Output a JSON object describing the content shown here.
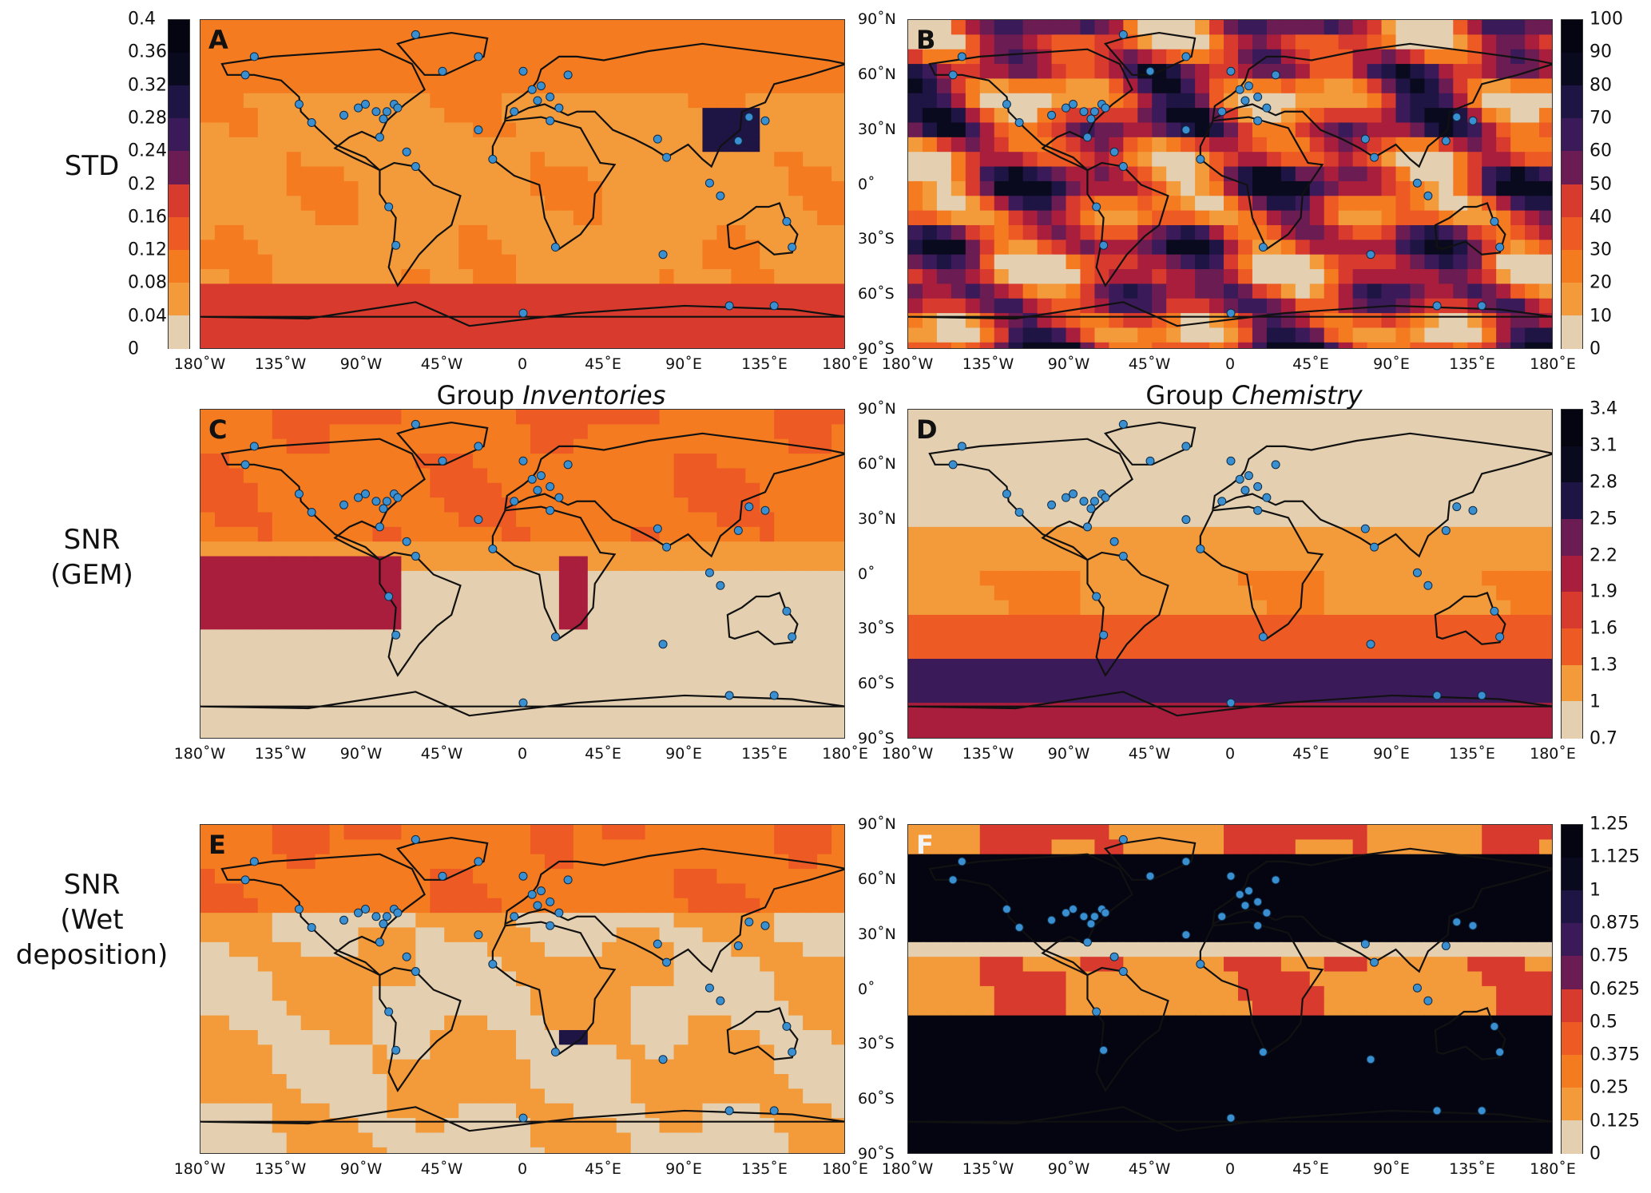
{
  "row_labels": {
    "std": "STD",
    "snr_gem": "SNR\n(GEM)",
    "snr_wet": "SNR\n(Wet\ndeposition)"
  },
  "group_titles": {
    "inventories_prefix": "Group",
    "inventories_italic": "Inventories",
    "chemistry_prefix": "Group",
    "chemistry_italic": "Chemistry"
  },
  "x_tick_labels": [
    "180˚W",
    "135˚W",
    "90˚W",
    "45˚W",
    "0",
    "45˚E",
    "90˚E",
    "135˚E",
    "180˚E"
  ],
  "y_tick_labels": [
    "90˚N",
    "60˚N",
    "30˚N",
    "0˚",
    "30˚S",
    "60˚S",
    "90˚S"
  ],
  "panels": [
    {
      "id": "A",
      "letter": "A",
      "colorbar": "std"
    },
    {
      "id": "B",
      "letter": "B",
      "colorbar": "std_pct"
    },
    {
      "id": "C",
      "letter": "C",
      "colorbar": "snr_gem"
    },
    {
      "id": "D",
      "letter": "D",
      "colorbar": "snr_gem"
    },
    {
      "id": "E",
      "letter": "E",
      "colorbar": "snr_wet"
    },
    {
      "id": "F",
      "letter": "F",
      "colorbar": "snr_wet"
    }
  ],
  "colorbars": {
    "std": {
      "ticks": [
        "0.4",
        "0.36",
        "0.32",
        "0.28",
        "0.24",
        "0.2",
        "0.16",
        "0.12",
        "0.08",
        "0.04",
        "0"
      ]
    },
    "std_pct": {
      "ticks": [
        "100",
        "90",
        "80",
        "70",
        "60",
        "50",
        "40",
        "30",
        "20",
        "10",
        "0"
      ]
    },
    "snr_gem": {
      "ticks": [
        "3.4",
        "3.1",
        "2.8",
        "2.5",
        "2.2",
        "1.9",
        "1.6",
        "1.3",
        "1",
        "0.7"
      ]
    },
    "snr_wet": {
      "ticks": [
        "1.25",
        "1.125",
        "1",
        "0.875",
        "0.75",
        "0.625",
        "0.5",
        "0.375",
        "0.25",
        "0.125",
        "0"
      ]
    }
  },
  "colors": {
    "palette": [
      "#e4d0b0",
      "#f39a3a",
      "#f47b20",
      "#ee5a24",
      "#d93a2e",
      "#a81e3c",
      "#6b1c52",
      "#3b1a5a",
      "#1e1545",
      "#0a0a1e",
      "#050512"
    ],
    "station_marker": "#3a8fd0",
    "coastline": "#111111"
  }
}
